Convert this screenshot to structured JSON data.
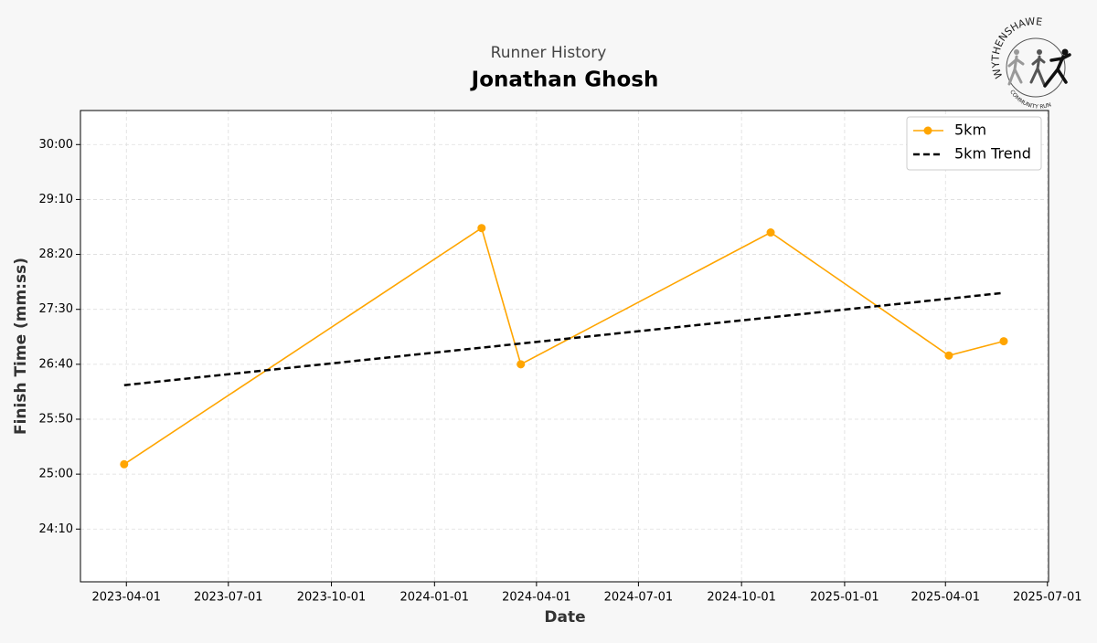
{
  "chart_data": {
    "type": "line",
    "subtitle": "Runner History",
    "title": "Jonathan Ghosh",
    "x_label": "Date",
    "y_label": "Finish Time (mm:ss)",
    "logo": {
      "top_text": "WYTHENSHAWE",
      "bottom_text": "COMMUNITY RUN"
    },
    "xlim": [
      "2023-02-19",
      "2025-07-02"
    ],
    "xticks": [
      "2023-04-01",
      "2023-07-01",
      "2023-10-01",
      "2024-01-01",
      "2024-04-01",
      "2024-07-01",
      "2024-10-01",
      "2025-01-01",
      "2025-04-01",
      "2025-07-01"
    ],
    "ylim": [
      1402,
      1831
    ],
    "yticks": [
      {
        "value": 1450,
        "label": "24:10"
      },
      {
        "value": 1500,
        "label": "25:00"
      },
      {
        "value": 1550,
        "label": "25:50"
      },
      {
        "value": 1600,
        "label": "26:40"
      },
      {
        "value": 1650,
        "label": "27:30"
      },
      {
        "value": 1700,
        "label": "28:20"
      },
      {
        "value": 1750,
        "label": "29:10"
      },
      {
        "value": 1800,
        "label": "30:00"
      }
    ],
    "grid": true,
    "legend": "upper right",
    "series": [
      {
        "name": "5km",
        "color": "#ffa500",
        "markers": true,
        "dashed": false,
        "x": [
          "2023-03-30",
          "2024-02-12",
          "2024-03-18",
          "2024-10-27",
          "2025-04-04",
          "2025-05-23"
        ],
        "values": [
          1509,
          1724,
          1600,
          1720,
          1608,
          1621
        ]
      },
      {
        "name": "5km Trend",
        "color": "#000000",
        "markers": false,
        "dashed": true,
        "x": [
          "2023-03-30",
          "2025-05-23"
        ],
        "values": [
          1581,
          1665
        ]
      }
    ]
  }
}
